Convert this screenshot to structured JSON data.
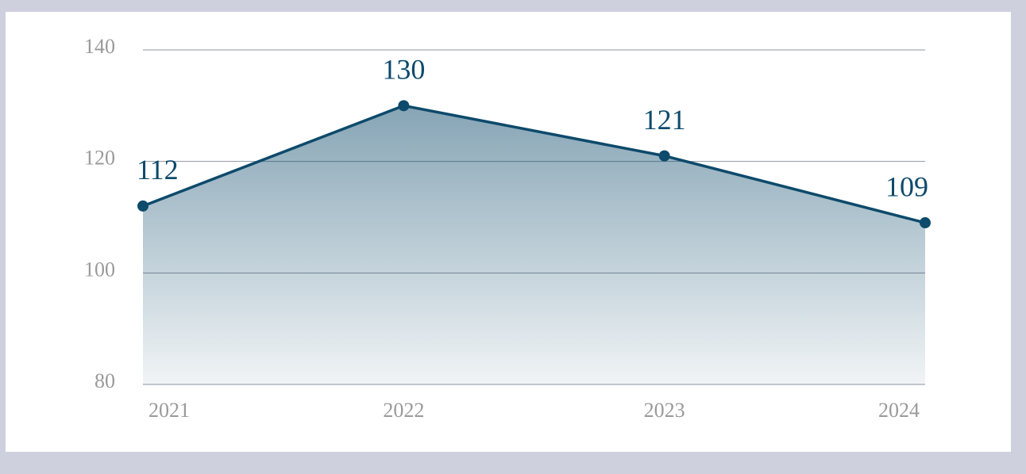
{
  "chart_data": {
    "type": "line",
    "categories": [
      "2021",
      "2022",
      "2023",
      "2024"
    ],
    "values": [
      112,
      130,
      121,
      109
    ],
    "color": "#0d4a6b",
    "area": true,
    "ylim": [
      80,
      140
    ],
    "yticks": [
      80,
      100,
      120,
      140
    ],
    "grid": true
  }
}
